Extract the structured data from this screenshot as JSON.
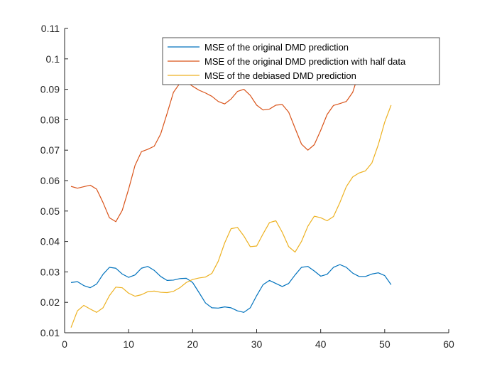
{
  "chart_data": {
    "type": "line",
    "title": "",
    "xlabel": "",
    "ylabel": "",
    "xlim": [
      0,
      60
    ],
    "ylim": [
      0.01,
      0.11
    ],
    "xticks": [
      0,
      10,
      20,
      30,
      40,
      50,
      60
    ],
    "yticks": [
      0.01,
      0.02,
      0.03,
      0.04,
      0.05,
      0.06,
      0.07,
      0.08,
      0.09,
      0.1,
      0.11
    ],
    "xtick_labels": [
      "0",
      "10",
      "20",
      "30",
      "40",
      "50",
      "60"
    ],
    "ytick_labels": [
      "0.01",
      "0.02",
      "0.03",
      "0.04",
      "0.05",
      "0.06",
      "0.07",
      "0.08",
      "0.09",
      "0.1",
      "0.11"
    ],
    "grid": false,
    "legend_position": "top-right",
    "x": [
      1,
      2,
      3,
      4,
      5,
      6,
      7,
      8,
      9,
      10,
      11,
      12,
      13,
      14,
      15,
      16,
      17,
      18,
      19,
      20,
      21,
      22,
      23,
      24,
      25,
      26,
      27,
      28,
      29,
      30,
      31,
      32,
      33,
      34,
      35,
      36,
      37,
      38,
      39,
      40,
      41,
      42,
      43,
      44,
      45,
      46,
      47,
      48,
      49,
      50,
      51
    ],
    "series": [
      {
        "name": "MSE of the original DMD prediction",
        "color": "#0072BD",
        "values": [
          0.0265,
          0.0268,
          0.0255,
          0.0248,
          0.026,
          0.0292,
          0.0315,
          0.0312,
          0.0293,
          0.0282,
          0.029,
          0.0312,
          0.0318,
          0.0305,
          0.0285,
          0.0272,
          0.0273,
          0.0278,
          0.0279,
          0.0265,
          0.0232,
          0.0198,
          0.0182,
          0.0181,
          0.0185,
          0.0182,
          0.0172,
          0.0167,
          0.0182,
          0.0222,
          0.0258,
          0.0272,
          0.0262,
          0.0252,
          0.0262,
          0.029,
          0.0315,
          0.0318,
          0.0303,
          0.0286,
          0.0292,
          0.0315,
          0.0324,
          0.0315,
          0.0296,
          0.0285,
          0.0285,
          0.0293,
          0.0297,
          0.0288,
          0.0258
        ]
      },
      {
        "name": "MSE of the original DMD prediction with half data",
        "color": "#D95319",
        "values": [
          0.0581,
          0.0575,
          0.058,
          0.0585,
          0.0572,
          0.0528,
          0.0478,
          0.0465,
          0.0502,
          0.0572,
          0.065,
          0.0695,
          0.0703,
          0.0713,
          0.0753,
          0.082,
          0.089,
          0.092,
          0.0925,
          0.091,
          0.0897,
          0.0888,
          0.0877,
          0.086,
          0.0852,
          0.0868,
          0.0893,
          0.09,
          0.088,
          0.0848,
          0.0832,
          0.0835,
          0.0848,
          0.085,
          0.0825,
          0.0772,
          0.072,
          0.07,
          0.0718,
          0.0765,
          0.0817,
          0.0847,
          0.0853,
          0.086,
          0.089,
          0.0955,
          0.0985,
          0.1,
          0.102,
          0.104,
          0.106
        ]
      },
      {
        "name": "MSE of the debiased DMD prediction",
        "color": "#EDB120",
        "values": [
          0.0117,
          0.0172,
          0.019,
          0.0178,
          0.0167,
          0.0182,
          0.0222,
          0.025,
          0.0248,
          0.023,
          0.022,
          0.0225,
          0.0235,
          0.0237,
          0.0233,
          0.0232,
          0.0236,
          0.0248,
          0.0265,
          0.0275,
          0.028,
          0.0283,
          0.0295,
          0.0335,
          0.0395,
          0.0442,
          0.0446,
          0.0418,
          0.0383,
          0.0385,
          0.0425,
          0.0462,
          0.0468,
          0.043,
          0.0383,
          0.0365,
          0.04,
          0.045,
          0.0483,
          0.0478,
          0.0468,
          0.0482,
          0.0528,
          0.058,
          0.0612,
          0.0625,
          0.0632,
          0.0658,
          0.0718,
          0.0792,
          0.0848
        ]
      }
    ]
  }
}
